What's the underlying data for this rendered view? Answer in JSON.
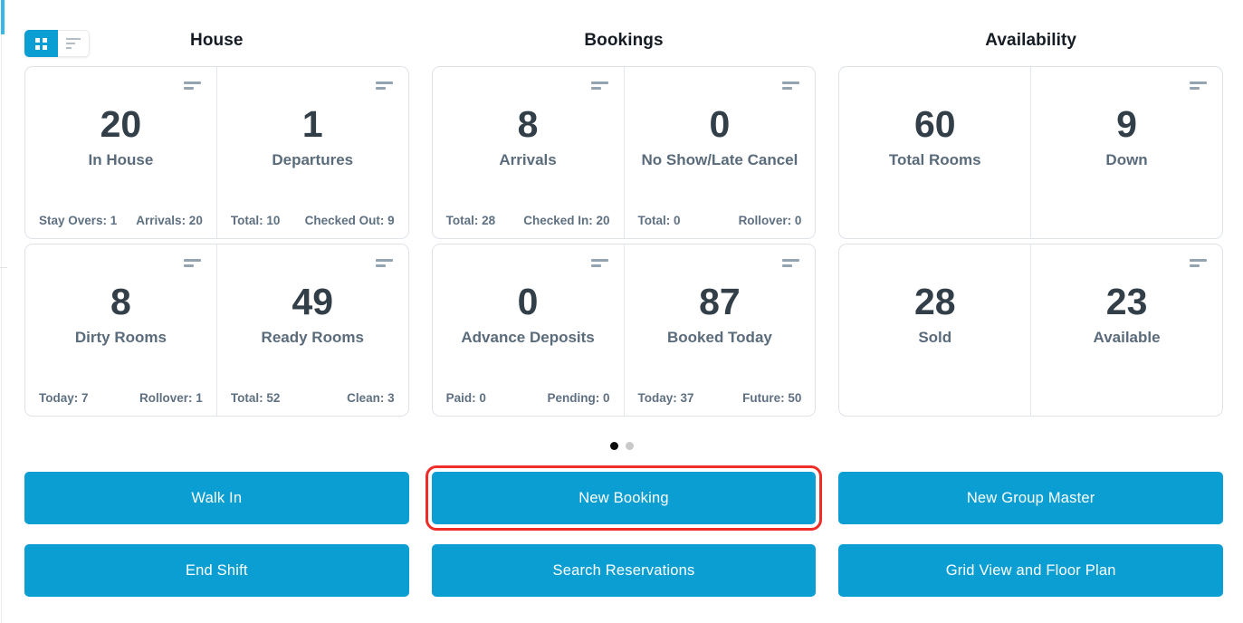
{
  "colors": {
    "accent": "#0a9ed3",
    "accent_light": "#3ab7e6",
    "highlight_red": "#ef2c26",
    "number": "#323e48",
    "label": "#5a6b7b",
    "footer": "#5e7081"
  },
  "view_toggle": {
    "options": [
      {
        "name": "grid-view",
        "icon": "grid-icon",
        "active": true
      },
      {
        "name": "list-view",
        "icon": "list-icon",
        "active": false
      }
    ]
  },
  "sections": [
    {
      "title": "House",
      "cards": [
        {
          "value": "20",
          "label": "In House",
          "footer_left": "Stay Overs: 1",
          "footer_right": "Arrivals: 20"
        },
        {
          "value": "1",
          "label": "Departures",
          "footer_left": "Total: 10",
          "footer_right": "Checked Out: 9"
        },
        {
          "value": "8",
          "label": "Dirty Rooms",
          "footer_left": "Today: 7",
          "footer_right": "Rollover: 1"
        },
        {
          "value": "49",
          "label": "Ready Rooms",
          "footer_left": "Total: 52",
          "footer_right": "Clean: 3"
        }
      ]
    },
    {
      "title": "Bookings",
      "cards": [
        {
          "value": "8",
          "label": "Arrivals",
          "footer_left": "Total: 28",
          "footer_right": "Checked In: 20"
        },
        {
          "value": "0",
          "label": "No Show/Late Cancel",
          "footer_left": "Total: 0",
          "footer_right": "Rollover: 0"
        },
        {
          "value": "0",
          "label": "Advance Deposits",
          "footer_left": "Paid: 0",
          "footer_right": "Pending: 0"
        },
        {
          "value": "87",
          "label": "Booked Today",
          "footer_left": "Today: 37",
          "footer_right": "Future: 50"
        }
      ]
    },
    {
      "title": "Availability",
      "cards": [
        {
          "value": "60",
          "label": "Total Rooms"
        },
        {
          "value": "9",
          "label": "Down"
        },
        {
          "value": "28",
          "label": "Sold"
        },
        {
          "value": "23",
          "label": "Available"
        }
      ]
    }
  ],
  "pagination": {
    "total_pages": 2,
    "active_page": 1
  },
  "actions": [
    {
      "label": "Walk In"
    },
    {
      "label": "New Booking",
      "highlighted": true
    },
    {
      "label": "New Group Master"
    },
    {
      "label": "End Shift"
    },
    {
      "label": "Search Reservations"
    },
    {
      "label": "Grid View and Floor Plan"
    }
  ]
}
